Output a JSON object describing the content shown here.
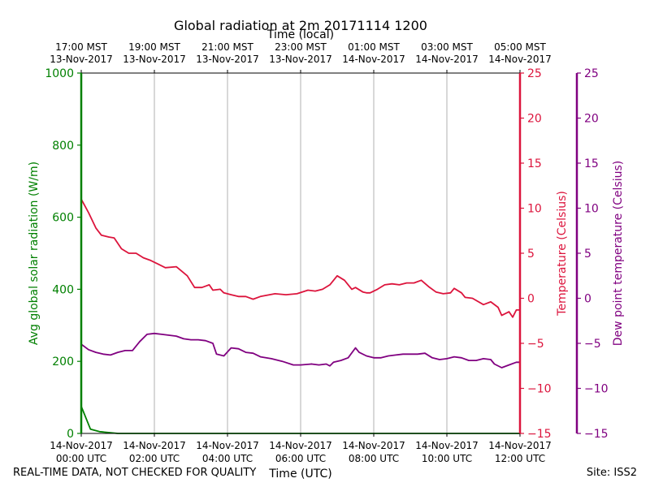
{
  "chart_data": {
    "type": "line",
    "title": "Global radiation at 2m 20171114 1200",
    "top_axis_label": "Time (local)",
    "xlabel": "Time (UTC)",
    "x_unit": "hours since 14-Nov-2017 00:00 UTC",
    "xlim": [
      0,
      12
    ],
    "bottom_ticks": [
      {
        "x": 0,
        "line1": "14-Nov-2017",
        "line2": "00:00 UTC"
      },
      {
        "x": 2,
        "line1": "14-Nov-2017",
        "line2": "02:00 UTC"
      },
      {
        "x": 4,
        "line1": "14-Nov-2017",
        "line2": "04:00 UTC"
      },
      {
        "x": 6,
        "line1": "14-Nov-2017",
        "line2": "06:00 UTC"
      },
      {
        "x": 8,
        "line1": "14-Nov-2017",
        "line2": "08:00 UTC"
      },
      {
        "x": 10,
        "line1": "14-Nov-2017",
        "line2": "10:00 UTC"
      },
      {
        "x": 12,
        "line1": "14-Nov-2017",
        "line2": "12:00 UTC"
      }
    ],
    "top_ticks": [
      {
        "x": 0,
        "line1": "17:00 MST",
        "line2": "13-Nov-2017"
      },
      {
        "x": 2,
        "line1": "19:00 MST",
        "line2": "13-Nov-2017"
      },
      {
        "x": 4,
        "line1": "21:00 MST",
        "line2": "13-Nov-2017"
      },
      {
        "x": 6,
        "line1": "23:00 MST",
        "line2": "13-Nov-2017"
      },
      {
        "x": 8,
        "line1": "01:00 MST",
        "line2": "14-Nov-2017"
      },
      {
        "x": 10,
        "line1": "03:00 MST",
        "line2": "14-Nov-2017"
      },
      {
        "x": 12,
        "line1": "05:00 MST",
        "line2": "14-Nov-2017"
      }
    ],
    "grid": "vertical",
    "left_axis": {
      "label": "Avg global solar radiation (W/m)",
      "color": "#008000",
      "ylim": [
        0,
        1000
      ],
      "ticks": [
        0,
        200,
        400,
        600,
        800,
        1000
      ],
      "tick_labels": [
        "0",
        "200",
        "400",
        "600",
        "800",
        "1000"
      ]
    },
    "right_axis_1": {
      "label": "Temperature (Celsius)",
      "color": "#dc143c",
      "ylim": [
        -15,
        25
      ],
      "ticks": [
        -15,
        -10,
        -5,
        0,
        5,
        10,
        15,
        20,
        25
      ],
      "tick_labels": [
        "−15",
        "−10",
        "−5",
        "0",
        "5",
        "10",
        "15",
        "20",
        "25"
      ]
    },
    "right_axis_2": {
      "label": "Dew point temperature (Celsius)",
      "color": "#800080",
      "ylim": [
        -15,
        25
      ],
      "ticks": [
        -15,
        -10,
        -5,
        0,
        5,
        10,
        15,
        20,
        25
      ],
      "tick_labels": [
        "−15",
        "−10",
        "−5",
        "0",
        "5",
        "10",
        "15",
        "20",
        "25"
      ]
    },
    "series": [
      {
        "name": "Avg global solar radiation",
        "axis": "left",
        "color": "#008000",
        "x": [
          0,
          0.1,
          0.25,
          0.5,
          0.8,
          1.0,
          2,
          4,
          6,
          8,
          10,
          12
        ],
        "values": [
          75,
          50,
          12,
          5,
          2,
          0,
          0,
          0,
          0,
          0,
          0,
          0
        ]
      },
      {
        "name": "Temperature",
        "axis": "right_axis_1",
        "color": "#dc143c",
        "segments": [
          {
            "x": [
              0,
              0.2,
              0.4,
              0.55,
              0.75,
              0.9,
              1.1,
              1.3,
              1.5,
              1.7,
              1.9,
              2.1,
              2.3,
              2.6,
              2.9,
              3.1,
              3.3,
              3.5,
              3.6,
              3.8,
              3.9,
              4.1,
              4.3,
              4.5,
              4.7,
              4.9,
              5.3,
              5.6,
              5.9,
              6.2,
              6.4,
              6.6,
              6.8,
              7.0,
              7.2,
              7.4,
              7.5,
              7.7,
              7.8,
              7.9,
              8.1,
              8.3,
              8.5,
              8.7,
              8.9,
              9.1,
              9.3,
              9.5,
              9.7,
              9.9,
              10.1,
              10.2,
              10.4,
              10.5,
              10.7,
              11.0,
              11.2,
              11.4,
              11.5,
              11.7,
              11.8,
              11.9,
              12.0
            ],
            "values": [
              11,
              9.5,
              7.8,
              7,
              6.8,
              6.7,
              5.5,
              5,
              5,
              4.5,
              4.2,
              3.8,
              3.4,
              3.5,
              2.5,
              1.2,
              1.2,
              1.5,
              0.9,
              1.0,
              0.6,
              0.4,
              0.2,
              0.2,
              -0.1,
              0.2,
              0.5,
              0.4,
              0.5,
              0.9,
              0.8,
              1.0,
              1.5,
              2.5,
              2.0,
              1.0,
              1.2,
              0.7,
              0.6,
              0.6,
              1.0,
              1.5,
              1.6,
              1.5,
              1.7,
              1.7,
              2.0,
              1.3,
              0.7,
              0.5,
              0.6,
              1.1,
              0.6,
              0.1,
              0.0,
              -0.7,
              -0.4,
              -1.0,
              -1.9,
              -1.5,
              -2.1,
              -1.3,
              -1.3
            ]
          }
        ]
      },
      {
        "name": "Dew point temperature",
        "axis": "right_axis_2",
        "color": "#800080",
        "segments": [
          {
            "x": [
              0,
              0.2,
              0.4,
              0.6,
              0.8,
              1.0,
              1.2,
              1.4,
              1.6,
              1.8,
              2.0,
              2.2,
              2.4,
              2.6,
              2.8,
              3.0,
              3.2,
              3.4,
              3.6,
              3.7,
              3.9,
              4.1,
              4.3,
              4.5,
              4.7,
              4.9,
              5.2,
              5.5,
              5.8,
              6.0,
              6.3
            ],
            "values": [
              -5.1,
              -5.7,
              -6.0,
              -6.2,
              -6.3,
              -6.0,
              -5.8,
              -5.8,
              -4.8,
              -4.0,
              -3.9,
              -4.0,
              -4.1,
              -4.2,
              -4.5,
              -4.6,
              -4.6,
              -4.7,
              -5.0,
              -6.2,
              -6.4,
              -5.5,
              -5.6,
              -6.0,
              -6.1,
              -6.5,
              -6.7,
              -7.0,
              -7.4,
              -7.4,
              -7.3
            ]
          },
          {
            "x": [
              6.3,
              6.5,
              6.7,
              6.8,
              6.9,
              7.1,
              7.3,
              7.5,
              7.6,
              7.8,
              8.0,
              8.2,
              8.4,
              8.6,
              8.8,
              9.0,
              9.2,
              9.4,
              9.6,
              9.8,
              10.0,
              10.2,
              10.4,
              10.6,
              10.8,
              11.0,
              11.2,
              11.3,
              11.5,
              11.7,
              11.9,
              12.0
            ],
            "values": [
              -7.3,
              -7.4,
              -7.3,
              -7.5,
              -7.1,
              -6.9,
              -6.6,
              -5.5,
              -6.0,
              -6.4,
              -6.6,
              -6.6,
              -6.4,
              -6.3,
              -6.2,
              -6.2,
              -6.2,
              -6.1,
              -6.6,
              -6.8,
              -6.7,
              -6.5,
              -6.6,
              -6.9,
              -6.9,
              -6.7,
              -6.8,
              -7.3,
              -7.7,
              -7.4,
              -7.1,
              -7.1
            ]
          }
        ]
      }
    ],
    "annotations": {
      "left_note": "REAL-TIME DATA, NOT CHECKED FOR QUALITY",
      "right_note": "Site: ISS2"
    }
  }
}
